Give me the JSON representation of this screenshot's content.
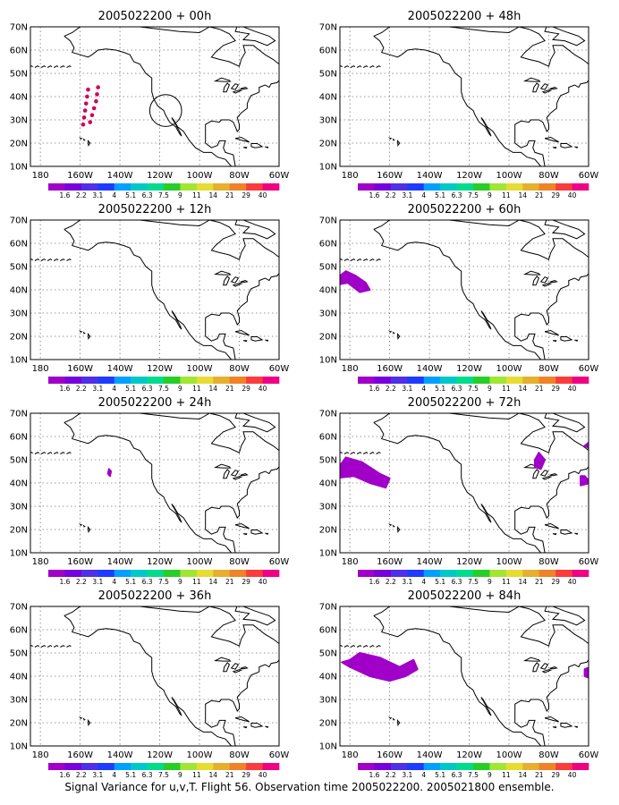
{
  "caption": "Signal Variance for u,v,T. Flight 56. Observation time 2005022200. 2005021800 ensemble.",
  "map": {
    "lat_labels": [
      "10N",
      "20N",
      "30N",
      "40N",
      "50N",
      "60N",
      "70N"
    ],
    "lon_labels": [
      "180",
      "160W",
      "140W",
      "120W",
      "100W",
      "80W",
      "60W"
    ],
    "lat_range": [
      10,
      70
    ],
    "lon_range": [
      -185,
      -60
    ]
  },
  "colorbar": {
    "labels": [
      "1.6",
      "2.2",
      "3.1",
      "4",
      "5.1",
      "6.3",
      "7.5",
      "9",
      "11",
      "14",
      "21",
      "29",
      "40"
    ],
    "colors": [
      "#a000c8",
      "#7800dc",
      "#5030e6",
      "#1e3cff",
      "#00a0ff",
      "#00c8c8",
      "#00dc8c",
      "#28cd28",
      "#a0e632",
      "#e6dc32",
      "#e6af2d",
      "#f08228",
      "#fa3c3c",
      "#f00082"
    ]
  },
  "panels": [
    {
      "title": "2005022200 + 00h",
      "features": [
        {
          "type": "dots",
          "color": "#d0005a",
          "points": [
            [
              -156,
              43
            ],
            [
              -156.5,
              40
            ],
            [
              -157,
              37
            ],
            [
              -157.5,
              34
            ],
            [
              -158,
              31
            ],
            [
              -158.5,
              28
            ],
            [
              -151,
              44
            ],
            [
              -151.5,
              41
            ],
            [
              -152,
              38
            ],
            [
              -153,
              35
            ],
            [
              -154,
              32
            ],
            [
              -155,
              29
            ]
          ]
        },
        {
          "type": "circle",
          "color": "#000000",
          "center": [
            -117,
            34
          ],
          "radius_deg": 8
        }
      ]
    },
    {
      "title": "2005022200 + 48h",
      "features": []
    },
    {
      "title": "2005022200 + 12h",
      "features": []
    },
    {
      "title": "2005022200 + 60h",
      "features": [
        {
          "type": "blob",
          "color": "#a000c8",
          "points": [
            [
              -188,
              44
            ],
            [
              -182,
              48
            ],
            [
              -177,
              46
            ],
            [
              -172,
              43
            ],
            [
              -170,
              40
            ],
            [
              -175,
              39
            ],
            [
              -181,
              43
            ],
            [
              -188,
              42
            ]
          ]
        }
      ]
    },
    {
      "title": "2005022200 + 24h",
      "features": [
        {
          "type": "blob",
          "color": "#a000c8",
          "points": [
            [
              -145.5,
              46
            ],
            [
              -144.5,
              45
            ],
            [
              -145,
              43
            ],
            [
              -146,
              44
            ]
          ]
        }
      ]
    },
    {
      "title": "2005022200 + 72h",
      "features": [
        {
          "type": "blob",
          "color": "#a000c8",
          "points": [
            [
              -188,
              44
            ],
            [
              -182,
              51
            ],
            [
              -174,
              49
            ],
            [
              -165,
              44
            ],
            [
              -160,
              42
            ],
            [
              -162,
              38
            ],
            [
              -170,
              40
            ],
            [
              -178,
              43
            ],
            [
              -188,
              42
            ]
          ]
        },
        {
          "type": "blob",
          "color": "#a000c8",
          "points": [
            [
              -87,
              50
            ],
            [
              -85,
              53
            ],
            [
              -82,
              50
            ],
            [
              -84,
              46
            ],
            [
              -87,
              47
            ]
          ]
        },
        {
          "type": "blob",
          "color": "#a000c8",
          "points": [
            [
              -64,
              43
            ],
            [
              -62,
              43
            ],
            [
              -59,
              40
            ],
            [
              -64,
              39
            ]
          ]
        },
        {
          "type": "blob",
          "color": "#a000c8",
          "points": [
            [
              -62,
              56
            ],
            [
              -59,
              58
            ],
            [
              -58,
              54
            ]
          ]
        }
      ]
    },
    {
      "title": "2005022200 + 36h",
      "features": []
    },
    {
      "title": "2005022200 + 84h",
      "features": [
        {
          "type": "blob",
          "color": "#a000c8",
          "points": [
            [
              -180,
              47
            ],
            [
              -175,
              50
            ],
            [
              -165,
              48
            ],
            [
              -155,
              44
            ],
            [
              -148,
              47
            ],
            [
              -146,
              43
            ],
            [
              -152,
              40
            ],
            [
              -160,
              38
            ],
            [
              -170,
              40
            ],
            [
              -180,
              44
            ],
            [
              -184,
              46
            ]
          ]
        },
        {
          "type": "blob",
          "color": "#a000c8",
          "points": [
            [
              -62,
              43
            ],
            [
              -59,
              44
            ],
            [
              -59,
              39
            ],
            [
              -62,
              40
            ]
          ]
        }
      ]
    }
  ]
}
